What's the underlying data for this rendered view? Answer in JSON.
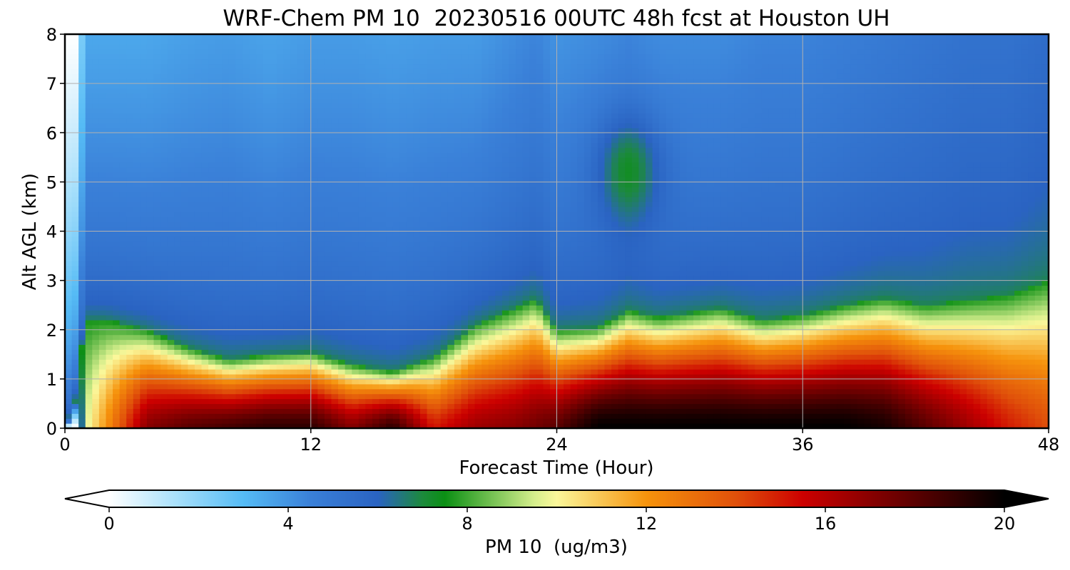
{
  "chart_data": {
    "type": "heatmap",
    "title": "WRF-Chem PM 10  20230516 00UTC 48h fcst at Houston UH",
    "xlabel": "Forecast Time (Hour)",
    "ylabel": "Alt AGL (km)",
    "xlim": [
      0,
      48
    ],
    "ylim": [
      0,
      8
    ],
    "x_ticks": [
      0,
      12,
      24,
      36,
      48
    ],
    "y_ticks": [
      0,
      1,
      2,
      3,
      4,
      5,
      6,
      7,
      8
    ],
    "grid": true,
    "colorbar": {
      "label": "PM 10  (ug/m3)",
      "ticks": [
        0,
        4,
        8,
        12,
        16,
        20
      ],
      "range": [
        0,
        20
      ],
      "extend": "both",
      "placement": "bottom",
      "stops": [
        {
          "v": 0,
          "c": "#ffffff"
        },
        {
          "v": 1.5,
          "c": "#a8e0fb"
        },
        {
          "v": 3,
          "c": "#55bbf5"
        },
        {
          "v": 4.5,
          "c": "#3a80d8"
        },
        {
          "v": 6,
          "c": "#2a63c2"
        },
        {
          "v": 7,
          "c": "#1c8a3c"
        },
        {
          "v": 7.5,
          "c": "#0b8f14"
        },
        {
          "v": 9.5,
          "c": "#d5ee8c"
        },
        {
          "v": 10,
          "c": "#fbf79a"
        },
        {
          "v": 12,
          "c": "#f6930c"
        },
        {
          "v": 14,
          "c": "#e0500a"
        },
        {
          "v": 15.5,
          "c": "#cc0000"
        },
        {
          "v": 17,
          "c": "#880000"
        },
        {
          "v": 20,
          "c": "#000000"
        }
      ]
    },
    "fields": {
      "times": [
        0,
        0.5,
        1,
        2,
        4,
        6,
        8,
        10,
        12,
        14,
        16,
        18,
        20,
        22,
        23,
        24,
        26,
        27.5,
        29,
        32,
        34,
        36,
        38,
        40,
        42,
        44,
        46,
        48
      ],
      "boundary_height_km": [
        0,
        0.6,
        2.2,
        2.2,
        2.0,
        1.65,
        1.4,
        1.5,
        1.55,
        1.3,
        1.15,
        1.45,
        2.1,
        2.45,
        2.65,
        2.0,
        2.05,
        2.4,
        2.25,
        2.45,
        2.2,
        2.3,
        2.5,
        2.65,
        2.5,
        2.6,
        2.7,
        3.0
      ],
      "surface_pm10": [
        0,
        0,
        9.5,
        12,
        17,
        18,
        18.5,
        19,
        19,
        17,
        19,
        15,
        16.5,
        17,
        17.5,
        18,
        20,
        20,
        20,
        20,
        20,
        20,
        20,
        19.5,
        18,
        16.5,
        15,
        14
      ],
      "top_pm10": [
        0,
        0,
        3.5,
        3.5,
        3.5,
        3.7,
        3.8,
        3.6,
        3.8,
        3.8,
        3.7,
        3.8,
        3.8,
        4.2,
        4.4,
        4.0,
        4.2,
        4.4,
        4.2,
        4.2,
        4.4,
        4.4,
        4.6,
        4.8,
        5.0,
        5.2,
        5.2,
        5.5
      ]
    }
  }
}
